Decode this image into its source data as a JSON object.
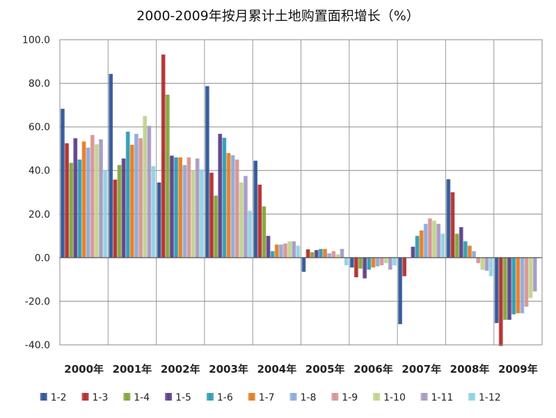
{
  "chart_data": {
    "type": "bar",
    "title": "2000-2009年按月累计土地购置面积增长（%）",
    "xlabel": "",
    "ylabel": "",
    "ylim": [
      -40,
      100
    ],
    "yticks": [
      "100.0",
      "80.0",
      "60.0",
      "40.0",
      "20.0",
      "0.0",
      "-20.0",
      "-40.0"
    ],
    "grid": true,
    "legend_position": "bottom",
    "categories": [
      "2000年",
      "2001年",
      "2002年",
      "2003年",
      "2004年",
      "2005年",
      "2006年",
      "2007年",
      "2008年",
      "2009年"
    ],
    "series": [
      {
        "name": "1-2",
        "color": "#2e5597",
        "values": [
          68.3,
          84.3,
          34.5,
          78.7,
          44.5,
          -6.5,
          -4.5,
          -30.5,
          36.0,
          -30.0
        ]
      },
      {
        "name": "1-3",
        "color": "#b22d2a",
        "values": [
          52.5,
          35.8,
          93.2,
          39.0,
          33.5,
          3.8,
          -9.0,
          -8.5,
          30.0,
          -40.5
        ]
      },
      {
        "name": "1-4",
        "color": "#82a53a",
        "values": [
          43.5,
          42.5,
          74.8,
          28.5,
          23.5,
          2.5,
          -5.0,
          null,
          11.0,
          -28.5
        ]
      },
      {
        "name": "1-5",
        "color": "#5c3f87",
        "values": [
          54.8,
          45.5,
          46.8,
          56.8,
          10.0,
          3.5,
          -9.5,
          5.0,
          14.0,
          -28.5
        ]
      },
      {
        "name": "1-6",
        "color": "#2e9bb3",
        "values": [
          45.0,
          57.8,
          46.0,
          55.0,
          3.0,
          4.0,
          -5.5,
          10.0,
          7.5,
          -26.0
        ]
      },
      {
        "name": "1-7",
        "color": "#e47c22",
        "values": [
          53.3,
          51.8,
          46.0,
          48.0,
          6.0,
          4.0,
          -4.5,
          12.5,
          5.5,
          -25.5
        ]
      },
      {
        "name": "1-8",
        "color": "#8ea9d6",
        "values": [
          50.5,
          56.8,
          42.5,
          47.0,
          6.0,
          2.0,
          -4.0,
          15.5,
          3.0,
          -25.5
        ]
      },
      {
        "name": "1-9",
        "color": "#d69393",
        "values": [
          56.3,
          54.8,
          46.0,
          45.0,
          6.5,
          3.0,
          -3.5,
          18.0,
          -2.5,
          -22.5
        ]
      },
      {
        "name": "1-10",
        "color": "#bfd38c",
        "values": [
          52.0,
          65.0,
          40.0,
          34.5,
          7.5,
          1.5,
          -2.5,
          17.0,
          -5.5,
          -18.5
        ]
      },
      {
        "name": "1-11",
        "color": "#a797c4",
        "values": [
          54.3,
          60.5,
          45.5,
          37.5,
          7.5,
          4.0,
          -5.5,
          15.5,
          -6.0,
          -15.5
        ]
      },
      {
        "name": "1-12",
        "color": "#8dd2e2",
        "values": [
          40.0,
          42.0,
          40.5,
          21.5,
          5.5,
          -3.5,
          -3.5,
          11.0,
          -8.5,
          null
        ]
      }
    ]
  }
}
